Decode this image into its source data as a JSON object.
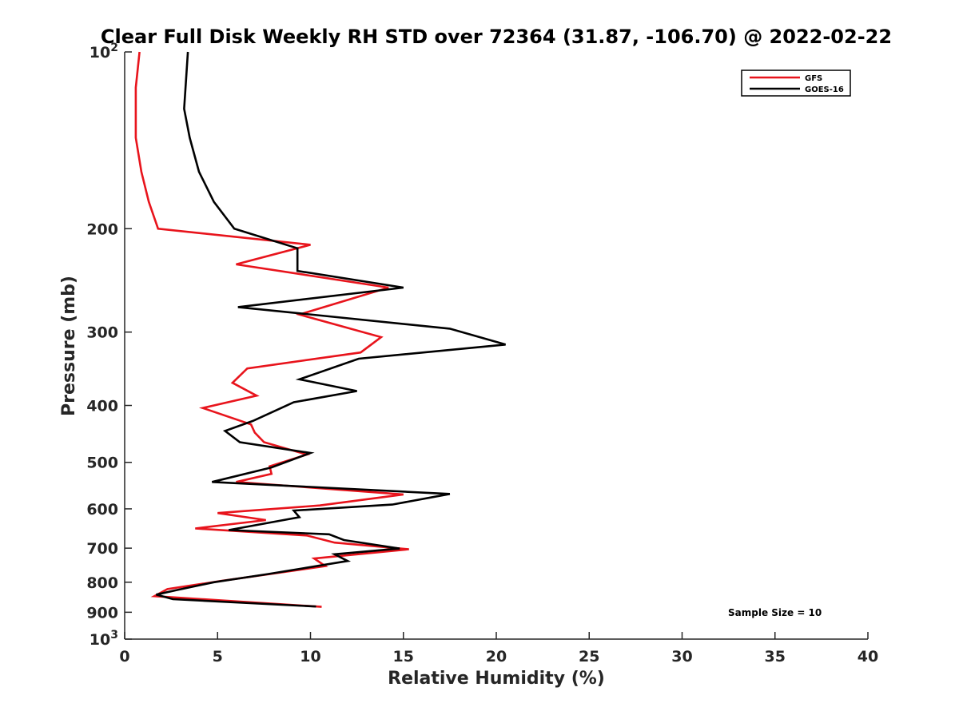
{
  "chart_data": {
    "type": "line",
    "title": "Clear Full Disk Weekly RH STD over 72364 (31.87, -106.70) @ 2022-02-22",
    "xlabel": "Relative Humidity (%)",
    "ylabel": "Pressure (mb)",
    "xlim": [
      0,
      40
    ],
    "ylim": [
      100,
      1000
    ],
    "yscale": "log",
    "y_reversed": true,
    "x_ticks": [
      "0",
      "5",
      "10",
      "15",
      "20",
      "25",
      "30",
      "35",
      "40"
    ],
    "y_ticks": [
      {
        "value": 100,
        "base": "10",
        "exp": "2",
        "label": ""
      },
      {
        "value": 200,
        "label": "200"
      },
      {
        "value": 300,
        "label": "300"
      },
      {
        "value": 400,
        "label": "400"
      },
      {
        "value": 500,
        "label": "500"
      },
      {
        "value": 600,
        "label": "600"
      },
      {
        "value": 700,
        "label": "700"
      },
      {
        "value": 800,
        "label": "800"
      },
      {
        "value": 900,
        "label": "900"
      },
      {
        "value": 1000,
        "base": "10",
        "exp": "3",
        "label": ""
      }
    ],
    "legend_position": "top-right",
    "annotation": "Sample Size = 10",
    "series": [
      {
        "name": "GFS",
        "color": "#e8141c",
        "points": [
          [
            0.8,
            100
          ],
          [
            0.6,
            115
          ],
          [
            0.6,
            125
          ],
          [
            0.6,
            140
          ],
          [
            0.9,
            160
          ],
          [
            1.3,
            180
          ],
          [
            1.8,
            200
          ],
          [
            10.0,
            213
          ],
          [
            6.0,
            230
          ],
          [
            14.2,
            252
          ],
          [
            9.4,
            280
          ],
          [
            13.8,
            306
          ],
          [
            12.7,
            325
          ],
          [
            6.6,
            346
          ],
          [
            5.8,
            366
          ],
          [
            7.1,
            385
          ],
          [
            4.2,
            404
          ],
          [
            6.8,
            431
          ],
          [
            7.0,
            445
          ],
          [
            7.5,
            462
          ],
          [
            9.8,
            485
          ],
          [
            7.8,
            508
          ],
          [
            7.9,
            523
          ],
          [
            6.0,
            540
          ],
          [
            15.0,
            567
          ],
          [
            10.5,
            592
          ],
          [
            5.0,
            610
          ],
          [
            7.6,
            627
          ],
          [
            3.8,
            648
          ],
          [
            9.8,
            666
          ],
          [
            11.3,
            685
          ],
          [
            15.3,
            703
          ],
          [
            10.2,
            729
          ],
          [
            10.8,
            751
          ],
          [
            7.8,
            775
          ],
          [
            5.3,
            795
          ],
          [
            2.3,
            822
          ],
          [
            1.6,
            845
          ],
          [
            10.6,
            881
          ]
        ]
      },
      {
        "name": "GOES-16",
        "color": "#000000",
        "points": [
          [
            3.4,
            100
          ],
          [
            3.2,
            125
          ],
          [
            3.5,
            140
          ],
          [
            4.0,
            160
          ],
          [
            4.8,
            180
          ],
          [
            5.9,
            200
          ],
          [
            9.3,
            216
          ],
          [
            9.3,
            236
          ],
          [
            15.0,
            252
          ],
          [
            6.1,
            272
          ],
          [
            17.5,
            296
          ],
          [
            20.5,
            315
          ],
          [
            12.6,
            333
          ],
          [
            9.4,
            361
          ],
          [
            12.5,
            378
          ],
          [
            9.1,
            395
          ],
          [
            6.9,
            425
          ],
          [
            5.4,
            442
          ],
          [
            6.2,
            462
          ],
          [
            10.0,
            482
          ],
          [
            7.9,
            510
          ],
          [
            4.7,
            540
          ],
          [
            17.5,
            566
          ],
          [
            14.4,
            590
          ],
          [
            9.1,
            604
          ],
          [
            9.4,
            620
          ],
          [
            5.6,
            652
          ],
          [
            11.0,
            663
          ],
          [
            11.8,
            678
          ],
          [
            14.8,
            701
          ],
          [
            11.3,
            717
          ],
          [
            12.0,
            736
          ],
          [
            7.7,
            775
          ],
          [
            4.8,
            800
          ],
          [
            2.8,
            825
          ],
          [
            1.7,
            840
          ],
          [
            2.6,
            855
          ],
          [
            10.3,
            880
          ]
        ]
      }
    ]
  }
}
